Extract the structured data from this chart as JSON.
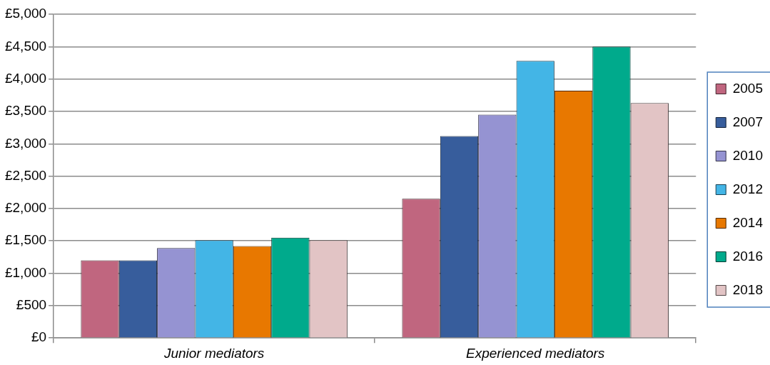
{
  "chart_data": {
    "type": "bar",
    "categories": [
      "Junior mediators",
      "Experienced mediators"
    ],
    "series": [
      {
        "name": "2005",
        "color": "#c0667f",
        "values": [
          1200,
          2150
        ]
      },
      {
        "name": "2007",
        "color": "#375d9c",
        "values": [
          1200,
          3120
        ]
      },
      {
        "name": "2010",
        "color": "#9593d2",
        "values": [
          1390,
          3450
        ]
      },
      {
        "name": "2012",
        "color": "#43b5e6",
        "values": [
          1510,
          4280
        ]
      },
      {
        "name": "2014",
        "color": "#e87800",
        "values": [
          1420,
          3820
        ]
      },
      {
        "name": "2016",
        "color": "#00aa8c",
        "values": [
          1550,
          4500
        ]
      },
      {
        "name": "2018",
        "color": "#e2c4c5",
        "values": [
          1510,
          3630
        ]
      }
    ],
    "ylim": [
      0,
      5000
    ],
    "yticks": [
      {
        "value": 0,
        "label": "£0"
      },
      {
        "value": 500,
        "label": "£500"
      },
      {
        "value": 1000,
        "label": "£1,000"
      },
      {
        "value": 1500,
        "label": "£1,500"
      },
      {
        "value": 2000,
        "label": "£2,000"
      },
      {
        "value": 2500,
        "label": "£2,500"
      },
      {
        "value": 3000,
        "label": "£3,000"
      },
      {
        "value": 3500,
        "label": "£3,500"
      },
      {
        "value": 4000,
        "label": "£4,000"
      },
      {
        "value": 4500,
        "label": "£4,500"
      },
      {
        "value": 5000,
        "label": "£5,000"
      }
    ],
    "grid": "y",
    "legend": "right"
  }
}
